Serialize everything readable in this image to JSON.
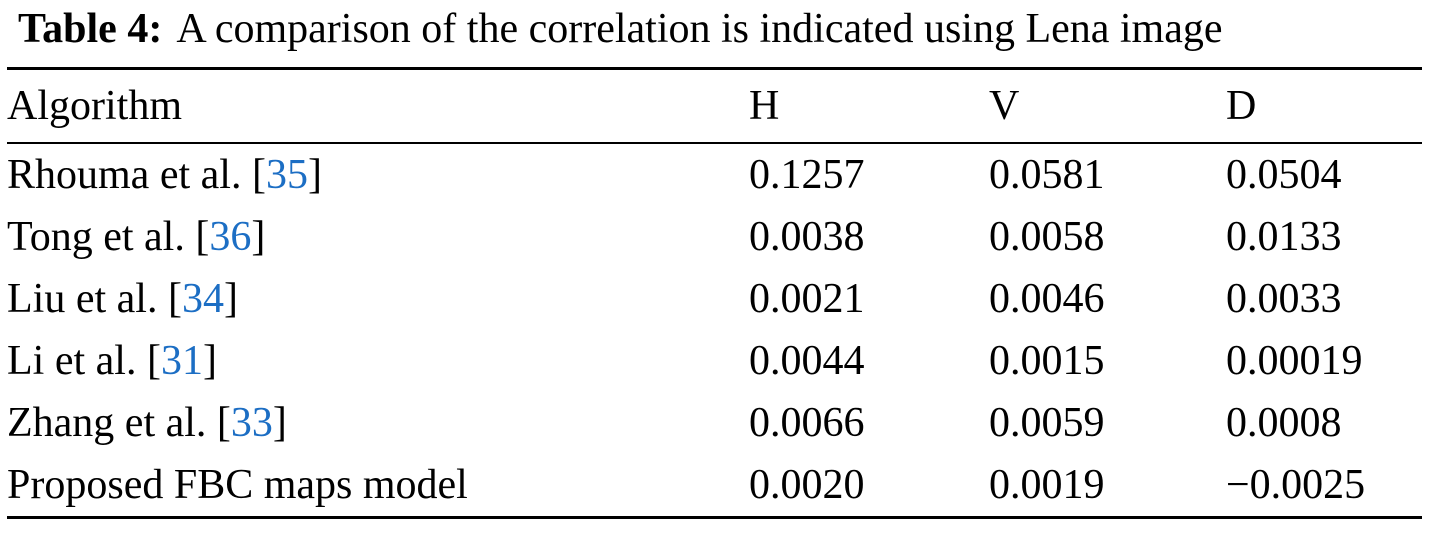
{
  "caption": {
    "label": "Table 4:",
    "text": "A comparison of the correlation is indicated using Lena image"
  },
  "colors": {
    "text": "#000000",
    "citation_blue": "#1c6ec4"
  },
  "chart_data": {
    "type": "table",
    "title": "Table 4: A comparison of the correlation is indicated using Lena image",
    "columns": [
      "Algorithm",
      "H",
      "V",
      "D"
    ],
    "rows": [
      {
        "name": "Rhouma et al.",
        "ref": "35",
        "H": "0.1257",
        "V": "0.0581",
        "D": "0.0504"
      },
      {
        "name": "Tong et al.",
        "ref": "36",
        "H": "0.0038",
        "V": "0.0058",
        "D": "0.0133"
      },
      {
        "name": "Liu et al.",
        "ref": "34",
        "H": "0.0021",
        "V": "0.0046",
        "D": "0.0033"
      },
      {
        "name": "Li et al.",
        "ref": "31",
        "H": "0.0044",
        "V": "0.0015",
        "D": "0.00019"
      },
      {
        "name": "Zhang et al.",
        "ref": "33",
        "H": "0.0066",
        "V": "0.0059",
        "D": "0.0008"
      },
      {
        "name": "Proposed FBC maps model",
        "ref": null,
        "H": "0.0020",
        "V": "0.0019",
        "D": "−0.0025"
      }
    ]
  }
}
